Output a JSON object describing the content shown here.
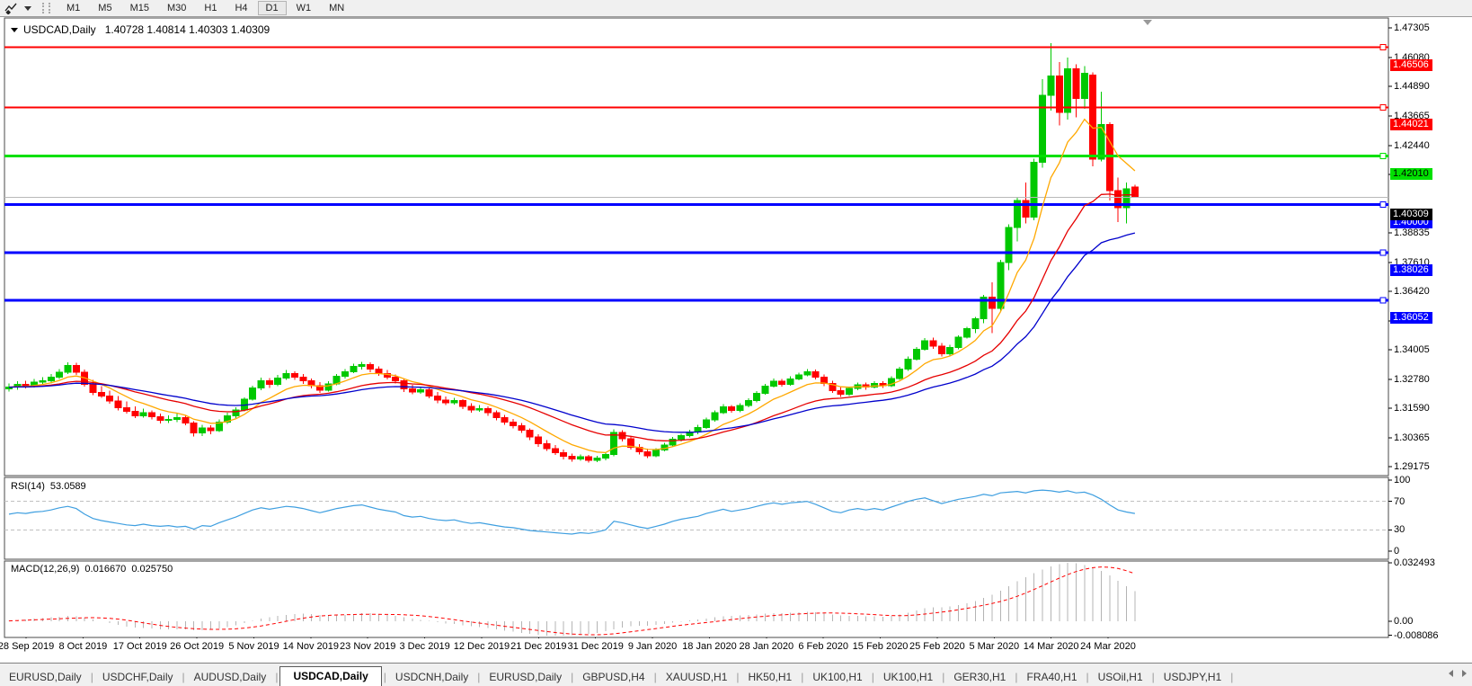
{
  "toolbar": {
    "icon": "chart-cursor-icon",
    "timeframes": [
      "M1",
      "M5",
      "M15",
      "M30",
      "H1",
      "H4",
      "D1",
      "W1",
      "MN"
    ],
    "active_timeframe": "D1"
  },
  "chart": {
    "title": "USDCAD,Daily",
    "ohlc": "1.40728 1.40814 1.40303 1.40309"
  },
  "price_axis": {
    "ticks": [
      "1.47305",
      "1.46080",
      "1.44890",
      "1.43665",
      "1.42440",
      "1.41250",
      "1.38835",
      "1.37610",
      "1.36420",
      "1.35195",
      "1.34005",
      "1.32780",
      "1.31590",
      "1.30365",
      "1.29175"
    ],
    "current_price": {
      "label": "1.40309",
      "value": 1.40309,
      "badge_bg": "#000000",
      "badge_text": "#ffffff",
      "line_color": "#b8b8b8"
    }
  },
  "chart_data": {
    "type": "candlestick",
    "symbol": "USDCAD",
    "timeframe": "Daily",
    "y_range": [
      1.29175,
      1.47305
    ],
    "colors": {
      "bull": "#00c800",
      "bear": "#ff0000",
      "ma_fast": "#ffa800",
      "ma_mid": "#e60000",
      "ma_slow": "#0000cc",
      "rsi_line": "#3f9fe0",
      "macd_hist": "#b4b4b4",
      "macd_signal": "#ff0000"
    },
    "hlines": [
      {
        "price": 1.46506,
        "label": "1.46506",
        "color": "#ff0000",
        "text": "#ffffff",
        "width": 2
      },
      {
        "price": 1.44021,
        "label": "1.44021",
        "color": "#ff0000",
        "text": "#ffffff",
        "width": 2
      },
      {
        "price": 1.4201,
        "label": "1.42010",
        "color": "#00e000",
        "text": "#000000",
        "width": 3
      },
      {
        "price": 1.4,
        "label": "1.40000",
        "color": "#0000ff",
        "text": "#ffffff",
        "width": 3
      },
      {
        "price": 1.38026,
        "label": "1.38026",
        "color": "#0000ff",
        "text": "#ffffff",
        "width": 3
      },
      {
        "price": 1.36052,
        "label": "1.36052",
        "color": "#0000ff",
        "text": "#ffffff",
        "width": 3
      }
    ],
    "moving_averages": [
      {
        "name": "fast",
        "period": 8,
        "color": "#ffa800"
      },
      {
        "name": "mid",
        "period": 21,
        "color": "#e60000"
      },
      {
        "name": "slow",
        "period": 34,
        "color": "#0000cc"
      }
    ],
    "candles": [
      [
        1.3238,
        1.3262,
        1.3228,
        1.3246
      ],
      [
        1.3246,
        1.327,
        1.3236,
        1.3258
      ],
      [
        1.3258,
        1.3272,
        1.324,
        1.325
      ],
      [
        1.325,
        1.328,
        1.3244,
        1.3266
      ],
      [
        1.3266,
        1.3288,
        1.3256,
        1.3272
      ],
      [
        1.3272,
        1.33,
        1.3262,
        1.3288
      ],
      [
        1.3288,
        1.332,
        1.328,
        1.3308
      ],
      [
        1.3308,
        1.3348,
        1.33,
        1.3336
      ],
      [
        1.3336,
        1.3346,
        1.3296,
        1.3308
      ],
      [
        1.3308,
        1.3318,
        1.3248,
        1.3258
      ],
      [
        1.3258,
        1.3276,
        1.3212,
        1.3224
      ],
      [
        1.3224,
        1.325,
        1.3202,
        1.321
      ],
      [
        1.321,
        1.3232,
        1.3178,
        1.3188
      ],
      [
        1.3188,
        1.321,
        1.315,
        1.316
      ],
      [
        1.316,
        1.3186,
        1.3136,
        1.3146
      ],
      [
        1.3146,
        1.3166,
        1.3118,
        1.3128
      ],
      [
        1.3128,
        1.3158,
        1.312,
        1.314
      ],
      [
        1.314,
        1.315,
        1.3112,
        1.3124
      ],
      [
        1.3124,
        1.3136,
        1.3096,
        1.3108
      ],
      [
        1.3108,
        1.313,
        1.3098,
        1.3112
      ],
      [
        1.3112,
        1.3138,
        1.3102,
        1.312
      ],
      [
        1.312,
        1.3128,
        1.3088,
        1.3098
      ],
      [
        1.3098,
        1.3106,
        1.3042,
        1.3056
      ],
      [
        1.3056,
        1.309,
        1.3044,
        1.3078
      ],
      [
        1.3078,
        1.3088,
        1.3052,
        1.3066
      ],
      [
        1.3066,
        1.3112,
        1.306,
        1.3102
      ],
      [
        1.3102,
        1.314,
        1.3094,
        1.3128
      ],
      [
        1.3128,
        1.3162,
        1.3118,
        1.3152
      ],
      [
        1.3152,
        1.3204,
        1.3146,
        1.3196
      ],
      [
        1.3196,
        1.3252,
        1.319,
        1.3242
      ],
      [
        1.3242,
        1.3286,
        1.3234,
        1.3272
      ],
      [
        1.3272,
        1.3284,
        1.3242,
        1.3258
      ],
      [
        1.3258,
        1.3296,
        1.325,
        1.3284
      ],
      [
        1.3284,
        1.3316,
        1.3276,
        1.3302
      ],
      [
        1.3302,
        1.3312,
        1.3276,
        1.3288
      ],
      [
        1.3288,
        1.33,
        1.326,
        1.3272
      ],
      [
        1.3272,
        1.3282,
        1.324,
        1.3252
      ],
      [
        1.3252,
        1.3266,
        1.3222,
        1.3234
      ],
      [
        1.3234,
        1.327,
        1.3228,
        1.326
      ],
      [
        1.326,
        1.33,
        1.3254,
        1.329
      ],
      [
        1.329,
        1.332,
        1.3282,
        1.331
      ],
      [
        1.331,
        1.3342,
        1.3304,
        1.3332
      ],
      [
        1.3332,
        1.335,
        1.3318,
        1.334
      ],
      [
        1.334,
        1.3348,
        1.3308,
        1.332
      ],
      [
        1.332,
        1.3332,
        1.3292,
        1.3302
      ],
      [
        1.3302,
        1.3316,
        1.3278,
        1.3288
      ],
      [
        1.3288,
        1.3298,
        1.3262,
        1.3272
      ],
      [
        1.3272,
        1.328,
        1.3226,
        1.3238
      ],
      [
        1.3238,
        1.3256,
        1.3216,
        1.3226
      ],
      [
        1.3226,
        1.3248,
        1.3218,
        1.3236
      ],
      [
        1.3236,
        1.3244,
        1.32,
        1.321
      ],
      [
        1.321,
        1.3226,
        1.318,
        1.3192
      ],
      [
        1.3192,
        1.3208,
        1.3172,
        1.3182
      ],
      [
        1.3182,
        1.3202,
        1.3174,
        1.319
      ],
      [
        1.319,
        1.3196,
        1.3156,
        1.3166
      ],
      [
        1.3166,
        1.318,
        1.314,
        1.3152
      ],
      [
        1.3152,
        1.3172,
        1.3144,
        1.3158
      ],
      [
        1.3158,
        1.3166,
        1.3128,
        1.314
      ],
      [
        1.314,
        1.315,
        1.3108,
        1.312
      ],
      [
        1.312,
        1.3132,
        1.309,
        1.3102
      ],
      [
        1.3102,
        1.3114,
        1.3076,
        1.3086
      ],
      [
        1.3086,
        1.3098,
        1.3056,
        1.3068
      ],
      [
        1.3068,
        1.3076,
        1.3028,
        1.304
      ],
      [
        1.304,
        1.3052,
        1.3,
        1.3012
      ],
      [
        1.3012,
        1.3028,
        1.2982,
        1.2992
      ],
      [
        1.2992,
        1.3006,
        1.2966,
        1.2976
      ],
      [
        1.2976,
        1.2988,
        1.2948,
        1.296
      ],
      [
        1.296,
        1.2972,
        1.2938,
        1.295
      ],
      [
        1.295,
        1.2968,
        1.2942,
        1.2958
      ],
      [
        1.2958,
        1.2966,
        1.2934,
        1.2944
      ],
      [
        1.2944,
        1.2962,
        1.2936,
        1.2952
      ],
      [
        1.2952,
        1.2976,
        1.2944,
        1.2968
      ],
      [
        1.2968,
        1.3072,
        1.296,
        1.3058
      ],
      [
        1.3058,
        1.3068,
        1.3022,
        1.3032
      ],
      [
        1.3032,
        1.3044,
        1.2988,
        1.2998
      ],
      [
        1.2998,
        1.301,
        1.2968,
        1.2978
      ],
      [
        1.2978,
        1.2992,
        1.2952,
        1.2962
      ],
      [
        1.2962,
        1.2994,
        1.2956,
        1.2986
      ],
      [
        1.2986,
        1.3016,
        1.298,
        1.3006
      ],
      [
        1.3006,
        1.304,
        1.3,
        1.303
      ],
      [
        1.303,
        1.3054,
        1.3022,
        1.3046
      ],
      [
        1.3046,
        1.307,
        1.3038,
        1.306
      ],
      [
        1.306,
        1.309,
        1.3052,
        1.308
      ],
      [
        1.308,
        1.312,
        1.3074,
        1.311
      ],
      [
        1.311,
        1.315,
        1.3104,
        1.314
      ],
      [
        1.314,
        1.3176,
        1.3134,
        1.3164
      ],
      [
        1.3164,
        1.3172,
        1.314,
        1.315
      ],
      [
        1.315,
        1.318,
        1.3142,
        1.317
      ],
      [
        1.317,
        1.32,
        1.3162,
        1.319
      ],
      [
        1.319,
        1.323,
        1.3184,
        1.322
      ],
      [
        1.322,
        1.326,
        1.3214,
        1.325
      ],
      [
        1.325,
        1.3282,
        1.3244,
        1.327
      ],
      [
        1.327,
        1.328,
        1.3248,
        1.3258
      ],
      [
        1.3258,
        1.329,
        1.3252,
        1.328
      ],
      [
        1.328,
        1.3306,
        1.3274,
        1.3296
      ],
      [
        1.3296,
        1.332,
        1.329,
        1.331
      ],
      [
        1.331,
        1.3318,
        1.3278,
        1.3288
      ],
      [
        1.3288,
        1.3298,
        1.325,
        1.3262
      ],
      [
        1.3262,
        1.3272,
        1.3222,
        1.3232
      ],
      [
        1.3232,
        1.3246,
        1.3206,
        1.3216
      ],
      [
        1.3216,
        1.3248,
        1.321,
        1.324
      ],
      [
        1.324,
        1.3264,
        1.3234,
        1.3256
      ],
      [
        1.3256,
        1.3264,
        1.3236,
        1.3246
      ],
      [
        1.3246,
        1.327,
        1.324,
        1.3262
      ],
      [
        1.3262,
        1.327,
        1.3242,
        1.3252
      ],
      [
        1.3252,
        1.329,
        1.3246,
        1.3282
      ],
      [
        1.3282,
        1.333,
        1.3276,
        1.332
      ],
      [
        1.332,
        1.3372,
        1.3314,
        1.3362
      ],
      [
        1.3362,
        1.3412,
        1.3356,
        1.3402
      ],
      [
        1.3402,
        1.3448,
        1.3396,
        1.3438
      ],
      [
        1.3438,
        1.345,
        1.3404,
        1.3416
      ],
      [
        1.3416,
        1.3428,
        1.3372,
        1.3384
      ],
      [
        1.3384,
        1.342,
        1.3376,
        1.341
      ],
      [
        1.341,
        1.346,
        1.3402,
        1.3452
      ],
      [
        1.3452,
        1.3496,
        1.3446,
        1.3488
      ],
      [
        1.3488,
        1.3536,
        1.347,
        1.3528
      ],
      [
        1.3528,
        1.3628,
        1.351,
        1.3618
      ],
      [
        1.3618,
        1.368,
        1.347,
        1.3572
      ],
      [
        1.3572,
        1.3772,
        1.356,
        1.376
      ],
      [
        1.376,
        1.3918,
        1.373,
        1.3906
      ],
      [
        1.3906,
        1.4032,
        1.3848,
        1.4018
      ],
      [
        1.4018,
        1.4092,
        1.3922,
        1.3948
      ],
      [
        1.3948,
        1.419,
        1.3936,
        1.4176
      ],
      [
        1.4176,
        1.4518,
        1.4152,
        1.4452
      ],
      [
        1.4452,
        1.4668,
        1.4388,
        1.4532
      ],
      [
        1.4532,
        1.459,
        1.4328,
        1.4382
      ],
      [
        1.4382,
        1.4608,
        1.4352,
        1.4562
      ],
      [
        1.4562,
        1.458,
        1.436,
        1.4438
      ],
      [
        1.4438,
        1.4572,
        1.4396,
        1.4542
      ],
      [
        1.4536,
        1.4546,
        1.4158,
        1.4188
      ],
      [
        1.4188,
        1.4466,
        1.4178,
        1.4332
      ],
      [
        1.4332,
        1.434,
        1.4018,
        1.4058
      ],
      [
        1.4058,
        1.4112,
        1.3928,
        1.3988
      ],
      [
        1.3988,
        1.4092,
        1.3922,
        1.4066
      ],
      [
        1.40728,
        1.40814,
        1.40303,
        1.40309
      ]
    ],
    "x_labels": [
      "28 Sep 2019",
      "8 Oct 2019",
      "17 Oct 2019",
      "26 Oct 2019",
      "5 Nov 2019",
      "14 Nov 2019",
      "23 Nov 2019",
      "3 Dec 2019",
      "12 Dec 2019",
      "21 Dec 2019",
      "31 Dec 2019",
      "9 Jan 2020",
      "18 Jan 2020",
      "28 Jan 2020",
      "6 Feb 2020",
      "15 Feb 2020",
      "25 Feb 2020",
      "5 Mar 2020",
      "14 Mar 2020",
      "24 Mar 2020"
    ],
    "rsi": {
      "label": "RSI(14)",
      "current": "53.0589",
      "range": [
        0,
        100
      ],
      "levels": [
        70,
        30
      ],
      "ticks": [
        "100",
        "70",
        "30",
        "0"
      ],
      "values": [
        52,
        54,
        53,
        55,
        56,
        58,
        61,
        63,
        60,
        52,
        46,
        43,
        41,
        39,
        37,
        36,
        38,
        36,
        35,
        36,
        34,
        35,
        31,
        36,
        35,
        40,
        44,
        48,
        53,
        58,
        61,
        59,
        61,
        63,
        62,
        60,
        57,
        54,
        57,
        60,
        62,
        64,
        65,
        62,
        59,
        57,
        55,
        50,
        48,
        49,
        46,
        44,
        43,
        44,
        41,
        39,
        40,
        38,
        36,
        34,
        33,
        31,
        29,
        28,
        27,
        26,
        25,
        24,
        26,
        25,
        27,
        30,
        42,
        40,
        37,
        34,
        32,
        35,
        38,
        42,
        45,
        47,
        49,
        53,
        56,
        59,
        56,
        58,
        60,
        63,
        66,
        68,
        66,
        68,
        69,
        70,
        66,
        61,
        56,
        54,
        58,
        60,
        58,
        60,
        58,
        62,
        66,
        70,
        73,
        75,
        71,
        67,
        70,
        73,
        75,
        77,
        80,
        78,
        82,
        83,
        84,
        82,
        85,
        86,
        85,
        83,
        85,
        82,
        83,
        79,
        73,
        65,
        58,
        55,
        53.06
      ]
    },
    "macd": {
      "label": "MACD(12,26,9)",
      "current_main": "0.016670",
      "current_signal": "0.025750",
      "ticks": [
        "0.032493",
        "0.00",
        "-0.008086"
      ],
      "hist": [
        0.0002,
        0.0006,
        0.001,
        0.0014,
        0.0018,
        0.0022,
        0.0026,
        0.003,
        0.0028,
        0.002,
        0.001,
        0.0,
        -0.001,
        -0.002,
        -0.003,
        -0.0036,
        -0.0038,
        -0.004,
        -0.0044,
        -0.0044,
        -0.0046,
        -0.0044,
        -0.005,
        -0.005,
        -0.0048,
        -0.004,
        -0.0032,
        -0.0022,
        -0.001,
        0.0002,
        0.0014,
        0.0022,
        0.003,
        0.0036,
        0.004,
        0.0042,
        0.004,
        0.0036,
        0.0034,
        0.0034,
        0.0036,
        0.004,
        0.0044,
        0.0044,
        0.004,
        0.0036,
        0.003,
        0.0022,
        0.0014,
        0.0008,
        0.0002,
        -0.0006,
        -0.0012,
        -0.0016,
        -0.0022,
        -0.0028,
        -0.0032,
        -0.0038,
        -0.0044,
        -0.0052,
        -0.0058,
        -0.0064,
        -0.007,
        -0.0076,
        -0.008,
        -0.0081,
        -0.008,
        -0.0078,
        -0.0074,
        -0.007,
        -0.0064,
        -0.0056,
        -0.0044,
        -0.0034,
        -0.0028,
        -0.0026,
        -0.0024,
        -0.002,
        -0.0014,
        -0.0008,
        -0.0002,
        0.0004,
        0.001,
        0.0016,
        0.0022,
        0.0028,
        0.003,
        0.0032,
        0.0034,
        0.0038,
        0.0042,
        0.0046,
        0.0046,
        0.0048,
        0.005,
        0.0052,
        0.005,
        0.0044,
        0.0038,
        0.0032,
        0.003,
        0.003,
        0.0028,
        0.0028,
        0.0026,
        0.003,
        0.0038,
        0.0048,
        0.006,
        0.0072,
        0.0078,
        0.0078,
        0.0082,
        0.009,
        0.01,
        0.0112,
        0.013,
        0.0148,
        0.017,
        0.0196,
        0.0222,
        0.0245,
        0.0268,
        0.0288,
        0.0305,
        0.0318,
        0.0325,
        0.0322,
        0.0312,
        0.0298,
        0.028,
        0.0256,
        0.0225,
        0.0194,
        0.0167
      ]
    }
  },
  "tabs": {
    "separator": "|",
    "items": [
      {
        "label": "EURUSD,Daily",
        "active": false
      },
      {
        "label": "USDCHF,Daily",
        "active": false
      },
      {
        "label": "AUDUSD,Daily",
        "active": false
      },
      {
        "label": "USDCAD,Daily",
        "active": true
      },
      {
        "label": "USDCNH,Daily",
        "active": false
      },
      {
        "label": "EURUSD,Daily",
        "active": false
      },
      {
        "label": "GBPUSD,H4",
        "active": false
      },
      {
        "label": "XAUUSD,H1",
        "active": false
      },
      {
        "label": "HK50,H1",
        "active": false
      },
      {
        "label": "UK100,H1",
        "active": false
      },
      {
        "label": "UK100,H1",
        "active": false
      },
      {
        "label": "GER30,H1",
        "active": false
      },
      {
        "label": "FRA40,H1",
        "active": false
      },
      {
        "label": "USOil,H1",
        "active": false
      },
      {
        "label": "USDJPY,H1",
        "active": false
      }
    ]
  }
}
